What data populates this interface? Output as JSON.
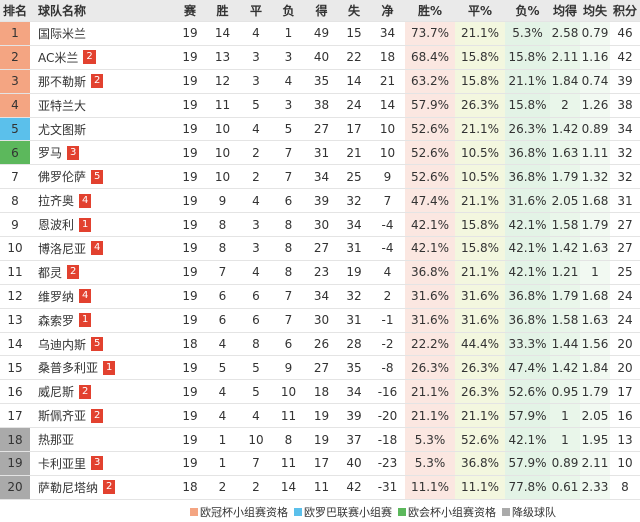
{
  "header": [
    "排名",
    "球队名称",
    "赛",
    "胜",
    "平",
    "负",
    "得",
    "失",
    "净",
    "胜%",
    "平%",
    "负%",
    "均得",
    "均失",
    "积分"
  ],
  "rows": [
    {
      "rank": "1",
      "team": "国际米兰",
      "color": "#f4a582",
      "cells": [
        "19",
        "14",
        "4",
        "1",
        "49",
        "15",
        "34",
        "73.7%",
        "21.1%",
        "5.3%",
        "2.58",
        "0.79",
        "46"
      ]
    },
    {
      "rank": "2",
      "team": "AC米兰",
      "badge": "2",
      "color": "#f4a582",
      "cells": [
        "19",
        "13",
        "3",
        "3",
        "40",
        "22",
        "18",
        "68.4%",
        "15.8%",
        "15.8%",
        "2.11",
        "1.16",
        "42"
      ]
    },
    {
      "rank": "3",
      "team": "那不勒斯",
      "badge": "2",
      "color": "#f4a582",
      "cells": [
        "19",
        "12",
        "3",
        "4",
        "35",
        "14",
        "21",
        "63.2%",
        "15.8%",
        "21.1%",
        "1.84",
        "0.74",
        "39"
      ]
    },
    {
      "rank": "4",
      "team": "亚特兰大",
      "color": "#f4a582",
      "cells": [
        "19",
        "11",
        "5",
        "3",
        "38",
        "24",
        "14",
        "57.9%",
        "26.3%",
        "15.8%",
        "2",
        "1.26",
        "38"
      ]
    },
    {
      "rank": "5",
      "team": "尤文图斯",
      "color": "#5bc0eb",
      "cells": [
        "19",
        "10",
        "4",
        "5",
        "27",
        "17",
        "10",
        "52.6%",
        "21.1%",
        "26.3%",
        "1.42",
        "0.89",
        "34"
      ]
    },
    {
      "rank": "6",
      "team": "罗马",
      "badge": "3",
      "color": "#5cb85c",
      "cells": [
        "19",
        "10",
        "2",
        "7",
        "31",
        "21",
        "10",
        "52.6%",
        "10.5%",
        "36.8%",
        "1.63",
        "1.11",
        "32"
      ]
    },
    {
      "rank": "7",
      "team": "佛罗伦萨",
      "badge": "5",
      "cells": [
        "19",
        "10",
        "2",
        "7",
        "34",
        "25",
        "9",
        "52.6%",
        "10.5%",
        "36.8%",
        "1.79",
        "1.32",
        "32"
      ]
    },
    {
      "rank": "8",
      "team": "拉齐奥",
      "badge": "4",
      "cells": [
        "19",
        "9",
        "4",
        "6",
        "39",
        "32",
        "7",
        "47.4%",
        "21.1%",
        "31.6%",
        "2.05",
        "1.68",
        "31"
      ]
    },
    {
      "rank": "9",
      "team": "恩波利",
      "badge": "1",
      "cells": [
        "19",
        "8",
        "3",
        "8",
        "30",
        "34",
        "-4",
        "42.1%",
        "15.8%",
        "42.1%",
        "1.58",
        "1.79",
        "27"
      ]
    },
    {
      "rank": "10",
      "team": "博洛尼亚",
      "badge": "4",
      "cells": [
        "19",
        "8",
        "3",
        "8",
        "27",
        "31",
        "-4",
        "42.1%",
        "15.8%",
        "42.1%",
        "1.42",
        "1.63",
        "27"
      ]
    },
    {
      "rank": "11",
      "team": "都灵",
      "badge": "2",
      "cells": [
        "19",
        "7",
        "4",
        "8",
        "23",
        "19",
        "4",
        "36.8%",
        "21.1%",
        "42.1%",
        "1.21",
        "1",
        "25"
      ]
    },
    {
      "rank": "12",
      "team": "维罗纳",
      "badge": "4",
      "cells": [
        "19",
        "6",
        "6",
        "7",
        "34",
        "32",
        "2",
        "31.6%",
        "31.6%",
        "36.8%",
        "1.79",
        "1.68",
        "24"
      ]
    },
    {
      "rank": "13",
      "team": "森索罗",
      "badge": "1",
      "cells": [
        "19",
        "6",
        "6",
        "7",
        "30",
        "31",
        "-1",
        "31.6%",
        "31.6%",
        "36.8%",
        "1.58",
        "1.63",
        "24"
      ]
    },
    {
      "rank": "14",
      "team": "乌迪内斯",
      "badge": "5",
      "cells": [
        "18",
        "4",
        "8",
        "6",
        "26",
        "28",
        "-2",
        "22.2%",
        "44.4%",
        "33.3%",
        "1.44",
        "1.56",
        "20"
      ]
    },
    {
      "rank": "15",
      "team": "桑普多利亚",
      "badge": "1",
      "cells": [
        "19",
        "5",
        "5",
        "9",
        "27",
        "35",
        "-8",
        "26.3%",
        "26.3%",
        "47.4%",
        "1.42",
        "1.84",
        "20"
      ]
    },
    {
      "rank": "16",
      "team": "威尼斯",
      "badge": "2",
      "cells": [
        "19",
        "4",
        "5",
        "10",
        "18",
        "34",
        "-16",
        "21.1%",
        "26.3%",
        "52.6%",
        "0.95",
        "1.79",
        "17"
      ]
    },
    {
      "rank": "17",
      "team": "斯佩齐亚",
      "badge": "2",
      "cells": [
        "19",
        "4",
        "4",
        "11",
        "19",
        "39",
        "-20",
        "21.1%",
        "21.1%",
        "57.9%",
        "1",
        "2.05",
        "16"
      ]
    },
    {
      "rank": "18",
      "team": "热那亚",
      "color": "#aaaaaa",
      "cells": [
        "19",
        "1",
        "10",
        "8",
        "19",
        "37",
        "-18",
        "5.3%",
        "52.6%",
        "42.1%",
        "1",
        "1.95",
        "13"
      ]
    },
    {
      "rank": "19",
      "team": "卡利亚里",
      "badge": "3",
      "color": "#aaaaaa",
      "cells": [
        "19",
        "1",
        "7",
        "11",
        "17",
        "40",
        "-23",
        "5.3%",
        "36.8%",
        "57.9%",
        "0.89",
        "2.11",
        "10"
      ]
    },
    {
      "rank": "20",
      "team": "萨勒尼塔纳",
      "badge": "2",
      "color": "#aaaaaa",
      "cells": [
        "18",
        "2",
        "2",
        "14",
        "11",
        "42",
        "-31",
        "11.1%",
        "11.1%",
        "77.8%",
        "0.61",
        "2.33",
        "8"
      ]
    }
  ],
  "legend": [
    {
      "label": "欧冠杯小组赛资格",
      "color": "#f4a582"
    },
    {
      "label": "欧罗巴联赛小组赛",
      "color": "#5bc0eb"
    },
    {
      "label": "欧会杯小组赛资格",
      "color": "#5cb85c"
    },
    {
      "label": "降级球队",
      "color": "#aaaaaa"
    }
  ]
}
